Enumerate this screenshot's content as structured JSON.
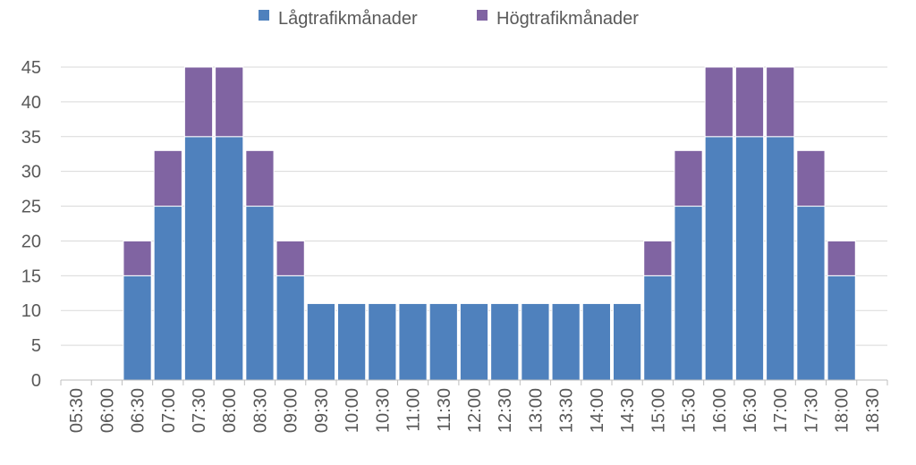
{
  "chart_data": {
    "type": "bar",
    "stacked": true,
    "title": "",
    "xlabel": "",
    "ylabel": "",
    "ylim": [
      0,
      45
    ],
    "yticks": [
      0,
      5,
      10,
      15,
      20,
      25,
      30,
      35,
      40,
      45
    ],
    "grid": "horizontal",
    "legend_position": "top",
    "categories": [
      "05:30",
      "06:00",
      "06:30",
      "07:00",
      "07:30",
      "08:00",
      "08:30",
      "09:00",
      "09:30",
      "10:00",
      "10:30",
      "11:00",
      "11:30",
      "12:00",
      "12:30",
      "13:00",
      "13:30",
      "14:00",
      "14:30",
      "15:00",
      "15:30",
      "16:00",
      "16:30",
      "17:00",
      "17:30",
      "18:00",
      "18:30"
    ],
    "series": [
      {
        "name": "Lågtrafikmånader",
        "color": "#4f81bd",
        "values": [
          0,
          0,
          15,
          25,
          35,
          35,
          25,
          15,
          11,
          11,
          11,
          11,
          11,
          11,
          11,
          11,
          11,
          11,
          11,
          15,
          25,
          35,
          35,
          35,
          25,
          15,
          0
        ]
      },
      {
        "name": "Högtrafikmånader",
        "color": "#8064a2",
        "values": [
          0,
          0,
          5,
          8,
          10,
          10,
          8,
          5,
          0,
          0,
          0,
          0,
          0,
          0,
          0,
          0,
          0,
          0,
          0,
          5,
          8,
          10,
          10,
          10,
          8,
          5,
          0
        ]
      }
    ]
  }
}
